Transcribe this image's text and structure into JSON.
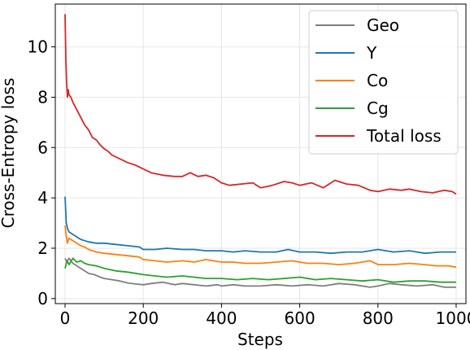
{
  "chart_data": {
    "type": "line",
    "xlabel": "Steps",
    "ylabel": "Cross-Entropy loss",
    "xlim": [
      -25,
      1025
    ],
    "ylim": [
      -0.2,
      11.7
    ],
    "xticks": [
      0,
      200,
      400,
      600,
      800,
      1000
    ],
    "yticks": [
      0,
      2,
      4,
      6,
      8,
      10
    ],
    "grid": true,
    "legend_position": "top-right",
    "series": [
      {
        "name": "Geo",
        "color": "#7f7f7f",
        "x": [
          0,
          5,
          10,
          20,
          30,
          40,
          50,
          60,
          75,
          90,
          100,
          120,
          140,
          160,
          180,
          200,
          220,
          250,
          280,
          300,
          330,
          360,
          390,
          400,
          430,
          460,
          500,
          540,
          580,
          620,
          660,
          700,
          740,
          780,
          800,
          830,
          860,
          900,
          940,
          970,
          1000
        ],
        "y": [
          1.6,
          1.45,
          1.6,
          1.4,
          1.3,
          1.2,
          1.1,
          1.0,
          0.95,
          0.85,
          0.8,
          0.75,
          0.7,
          0.62,
          0.58,
          0.55,
          0.6,
          0.65,
          0.55,
          0.6,
          0.55,
          0.5,
          0.55,
          0.5,
          0.55,
          0.5,
          0.5,
          0.55,
          0.5,
          0.55,
          0.5,
          0.6,
          0.55,
          0.45,
          0.5,
          0.6,
          0.55,
          0.5,
          0.55,
          0.45,
          0.45
        ]
      },
      {
        "name": "Y",
        "color": "#1f77b4",
        "x": [
          0,
          3,
          6,
          10,
          20,
          30,
          40,
          50,
          60,
          80,
          100,
          130,
          160,
          190,
          200,
          230,
          260,
          300,
          330,
          360,
          400,
          430,
          460,
          500,
          540,
          570,
          600,
          640,
          680,
          720,
          760,
          800,
          840,
          880,
          920,
          960,
          1000
        ],
        "y": [
          4.05,
          3.0,
          2.8,
          2.65,
          2.55,
          2.45,
          2.35,
          2.3,
          2.25,
          2.2,
          2.2,
          2.15,
          2.1,
          2.05,
          1.95,
          1.95,
          2.0,
          1.95,
          1.95,
          1.9,
          1.9,
          1.85,
          1.9,
          1.85,
          1.85,
          1.95,
          1.85,
          1.85,
          1.8,
          1.85,
          1.85,
          1.95,
          1.85,
          1.9,
          1.8,
          1.85,
          1.85
        ]
      },
      {
        "name": "Co",
        "color": "#ff7f0e",
        "x": [
          0,
          3,
          6,
          10,
          20,
          30,
          40,
          50,
          60,
          80,
          100,
          130,
          160,
          190,
          200,
          230,
          260,
          300,
          330,
          360,
          400,
          430,
          460,
          500,
          540,
          580,
          620,
          660,
          700,
          740,
          780,
          800,
          840,
          880,
          920,
          950,
          980,
          1000
        ],
        "y": [
          2.9,
          2.5,
          2.2,
          2.4,
          2.3,
          2.2,
          2.1,
          2.05,
          1.95,
          1.85,
          1.8,
          1.75,
          1.7,
          1.65,
          1.55,
          1.5,
          1.45,
          1.5,
          1.45,
          1.55,
          1.45,
          1.45,
          1.4,
          1.4,
          1.45,
          1.5,
          1.4,
          1.4,
          1.35,
          1.4,
          1.5,
          1.35,
          1.35,
          1.4,
          1.35,
          1.3,
          1.3,
          1.25
        ]
      },
      {
        "name": "Cg",
        "color": "#2ca02c",
        "x": [
          0,
          5,
          10,
          20,
          30,
          40,
          50,
          60,
          80,
          100,
          130,
          160,
          200,
          230,
          260,
          300,
          330,
          360,
          400,
          440,
          480,
          520,
          560,
          600,
          640,
          680,
          720,
          760,
          800,
          840,
          880,
          920,
          960,
          1000
        ],
        "y": [
          1.2,
          1.5,
          1.35,
          1.6,
          1.45,
          1.5,
          1.4,
          1.35,
          1.3,
          1.2,
          1.1,
          1.05,
          0.95,
          0.9,
          0.85,
          0.9,
          0.85,
          0.8,
          0.8,
          0.75,
          0.8,
          0.75,
          0.8,
          0.85,
          0.75,
          0.8,
          0.75,
          0.7,
          0.75,
          0.65,
          0.7,
          0.7,
          0.65,
          0.65
        ]
      },
      {
        "name": "Total loss",
        "color": "#d62728",
        "x": [
          0,
          2,
          4,
          6,
          8,
          10,
          15,
          20,
          30,
          40,
          50,
          60,
          70,
          80,
          90,
          100,
          110,
          120,
          140,
          160,
          180,
          200,
          220,
          250,
          280,
          300,
          320,
          340,
          360,
          380,
          400,
          420,
          450,
          480,
          500,
          530,
          560,
          580,
          600,
          630,
          660,
          690,
          720,
          750,
          780,
          800,
          830,
          860,
          880,
          910,
          940,
          970,
          990,
          1000
        ],
        "y": [
          11.3,
          9.5,
          8.6,
          8.0,
          8.3,
          8.1,
          8.0,
          7.8,
          7.5,
          7.2,
          6.9,
          6.7,
          6.4,
          6.3,
          6.1,
          5.95,
          5.85,
          5.7,
          5.55,
          5.4,
          5.3,
          5.15,
          5.0,
          4.9,
          4.85,
          4.85,
          5.0,
          4.85,
          4.9,
          4.8,
          4.6,
          4.5,
          4.55,
          4.6,
          4.4,
          4.5,
          4.65,
          4.6,
          4.5,
          4.6,
          4.4,
          4.7,
          4.55,
          4.5,
          4.3,
          4.25,
          4.35,
          4.3,
          4.35,
          4.25,
          4.2,
          4.3,
          4.25,
          4.15
        ]
      }
    ]
  }
}
